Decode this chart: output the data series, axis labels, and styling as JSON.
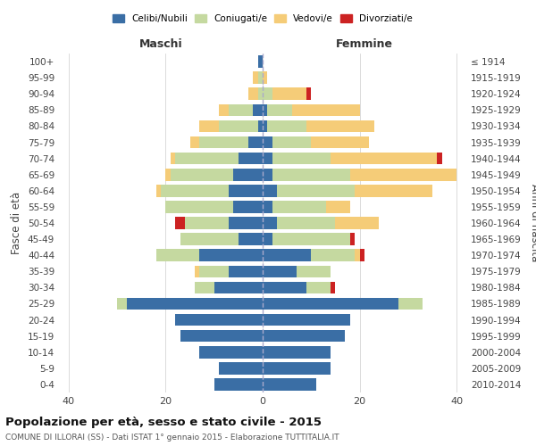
{
  "age_groups": [
    "0-4",
    "5-9",
    "10-14",
    "15-19",
    "20-24",
    "25-29",
    "30-34",
    "35-39",
    "40-44",
    "45-49",
    "50-54",
    "55-59",
    "60-64",
    "65-69",
    "70-74",
    "75-79",
    "80-84",
    "85-89",
    "90-94",
    "95-99",
    "100+"
  ],
  "birth_years": [
    "2010-2014",
    "2005-2009",
    "2000-2004",
    "1995-1999",
    "1990-1994",
    "1985-1989",
    "1980-1984",
    "1975-1979",
    "1970-1974",
    "1965-1969",
    "1960-1964",
    "1955-1959",
    "1950-1954",
    "1945-1949",
    "1940-1944",
    "1935-1939",
    "1930-1934",
    "1925-1929",
    "1920-1924",
    "1915-1919",
    "≤ 1914"
  ],
  "maschi": {
    "celibi": [
      10,
      9,
      13,
      17,
      18,
      28,
      10,
      7,
      13,
      5,
      7,
      6,
      7,
      6,
      5,
      3,
      1,
      2,
      0,
      0,
      1
    ],
    "coniugati": [
      0,
      0,
      0,
      0,
      0,
      2,
      4,
      6,
      9,
      12,
      9,
      14,
      14,
      13,
      13,
      10,
      8,
      5,
      1,
      1,
      0
    ],
    "vedovi": [
      0,
      0,
      0,
      0,
      0,
      0,
      0,
      1,
      0,
      0,
      0,
      0,
      1,
      1,
      1,
      2,
      4,
      2,
      2,
      1,
      0
    ],
    "divorziati": [
      0,
      0,
      0,
      0,
      0,
      0,
      0,
      0,
      0,
      0,
      2,
      0,
      0,
      0,
      0,
      0,
      0,
      0,
      0,
      0,
      0
    ]
  },
  "femmine": {
    "nubili": [
      11,
      14,
      14,
      17,
      18,
      28,
      9,
      7,
      10,
      2,
      3,
      2,
      3,
      2,
      2,
      2,
      1,
      1,
      0,
      0,
      0
    ],
    "coniugate": [
      0,
      0,
      0,
      0,
      0,
      5,
      5,
      7,
      9,
      16,
      12,
      11,
      16,
      16,
      12,
      8,
      8,
      5,
      2,
      0,
      0
    ],
    "vedove": [
      0,
      0,
      0,
      0,
      0,
      0,
      0,
      0,
      1,
      0,
      9,
      5,
      16,
      22,
      22,
      12,
      14,
      14,
      7,
      1,
      0
    ],
    "divorziate": [
      0,
      0,
      0,
      0,
      0,
      0,
      1,
      0,
      1,
      1,
      0,
      0,
      0,
      0,
      1,
      0,
      0,
      0,
      1,
      0,
      0
    ]
  },
  "colors": {
    "celibi_nubili": "#3a6ea5",
    "coniugati": "#c5d9a0",
    "vedovi": "#f5cc78",
    "divorziati": "#cc2222"
  },
  "title": "Popolazione per età, sesso e stato civile - 2015",
  "subtitle": "COMUNE DI ILLORAI (SS) - Dati ISTAT 1° gennaio 2015 - Elaborazione TUTTITALIA.IT",
  "xlabel_left": "Maschi",
  "xlabel_right": "Femmine",
  "ylabel_left": "Fasce di età",
  "ylabel_right": "Anni di nascita",
  "xlim": 42,
  "legend_labels": [
    "Celibi/Nubili",
    "Coniugati/e",
    "Vedovi/e",
    "Divorziati/e"
  ],
  "background_color": "#ffffff",
  "grid_color": "#cccccc"
}
